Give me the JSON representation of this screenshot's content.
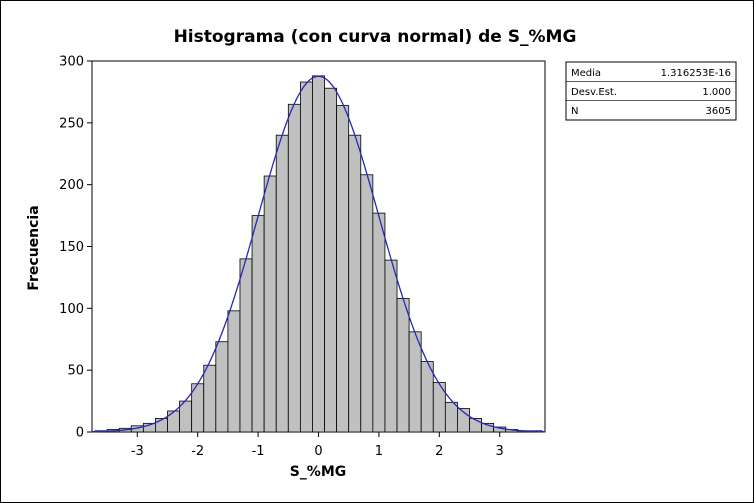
{
  "chart_data": {
    "type": "bar",
    "title": "Histograma (con curva normal) de S_%MG",
    "xlabel": "S_%MG",
    "ylabel": "Frecuencia",
    "xlim": [
      -3.75,
      3.75
    ],
    "ylim": [
      0,
      300
    ],
    "xticks": [
      -3,
      -2,
      -1,
      0,
      1,
      2,
      3
    ],
    "yticks": [
      0,
      50,
      100,
      150,
      200,
      250,
      300
    ],
    "bin_width": 0.2,
    "bins": [
      {
        "x": -3.6,
        "count": 1
      },
      {
        "x": -3.4,
        "count": 2
      },
      {
        "x": -3.2,
        "count": 3
      },
      {
        "x": -3.0,
        "count": 5
      },
      {
        "x": -2.8,
        "count": 7
      },
      {
        "x": -2.6,
        "count": 11
      },
      {
        "x": -2.4,
        "count": 17
      },
      {
        "x": -2.2,
        "count": 25
      },
      {
        "x": -2.0,
        "count": 39
      },
      {
        "x": -1.8,
        "count": 54
      },
      {
        "x": -1.6,
        "count": 73
      },
      {
        "x": -1.4,
        "count": 98
      },
      {
        "x": -1.2,
        "count": 140
      },
      {
        "x": -1.0,
        "count": 175
      },
      {
        "x": -0.8,
        "count": 207
      },
      {
        "x": -0.6,
        "count": 240
      },
      {
        "x": -0.4,
        "count": 265
      },
      {
        "x": -0.2,
        "count": 283
      },
      {
        "x": 0.0,
        "count": 288
      },
      {
        "x": 0.2,
        "count": 278
      },
      {
        "x": 0.4,
        "count": 264
      },
      {
        "x": 0.6,
        "count": 240
      },
      {
        "x": 0.8,
        "count": 208
      },
      {
        "x": 1.0,
        "count": 177
      },
      {
        "x": 1.2,
        "count": 139
      },
      {
        "x": 1.4,
        "count": 108
      },
      {
        "x": 1.6,
        "count": 81
      },
      {
        "x": 1.8,
        "count": 57
      },
      {
        "x": 2.0,
        "count": 40
      },
      {
        "x": 2.2,
        "count": 24
      },
      {
        "x": 2.4,
        "count": 19
      },
      {
        "x": 2.6,
        "count": 11
      },
      {
        "x": 2.8,
        "count": 7
      },
      {
        "x": 3.0,
        "count": 4
      },
      {
        "x": 3.2,
        "count": 2
      },
      {
        "x": 3.4,
        "count": 1
      },
      {
        "x": 3.6,
        "count": 1
      }
    ],
    "normal_curve": {
      "mean": 0,
      "sd": 1.0,
      "n": 3605
    },
    "grid": false,
    "legend": "none",
    "bar_color": "#c0c0c0",
    "bar_edge_color": "#000000",
    "curve_color": "#2828b8"
  },
  "stats_box": {
    "rows": [
      {
        "label": "Media",
        "value": "1.316253E-16"
      },
      {
        "label": "Desv.Est.",
        "value": "1.000"
      },
      {
        "label": "N",
        "value": "3605"
      }
    ]
  }
}
